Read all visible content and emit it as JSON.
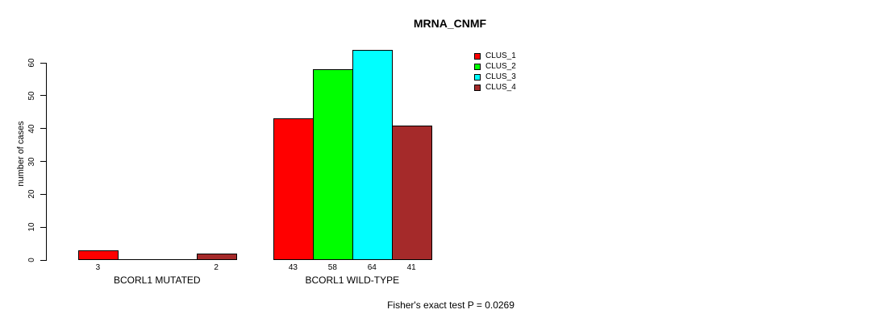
{
  "chart_data": {
    "type": "bar",
    "title": "MRNA_CNMF",
    "ylabel": "number of cases",
    "footnote": "Fisher's exact test P = 0.0269",
    "ylim": [
      0,
      60
    ],
    "yticks": [
      0,
      10,
      20,
      30,
      40,
      50,
      60
    ],
    "grid": false,
    "legend_position": "top-right",
    "axis_color": "#000000",
    "bar_border_color": "#000000",
    "categories": [
      "BCORL1 MUTATED",
      "BCORL1 WILD-TYPE"
    ],
    "series": [
      {
        "name": "CLUS_1",
        "color": "#ff0000",
        "values": [
          3,
          43
        ]
      },
      {
        "name": "CLUS_2",
        "color": "#00ff00",
        "values": [
          0,
          58
        ]
      },
      {
        "name": "CLUS_3",
        "color": "#00ffff",
        "values": [
          0,
          64
        ]
      },
      {
        "name": "CLUS_4",
        "color": "#a52a2a",
        "values": [
          2,
          41
        ]
      }
    ]
  }
}
